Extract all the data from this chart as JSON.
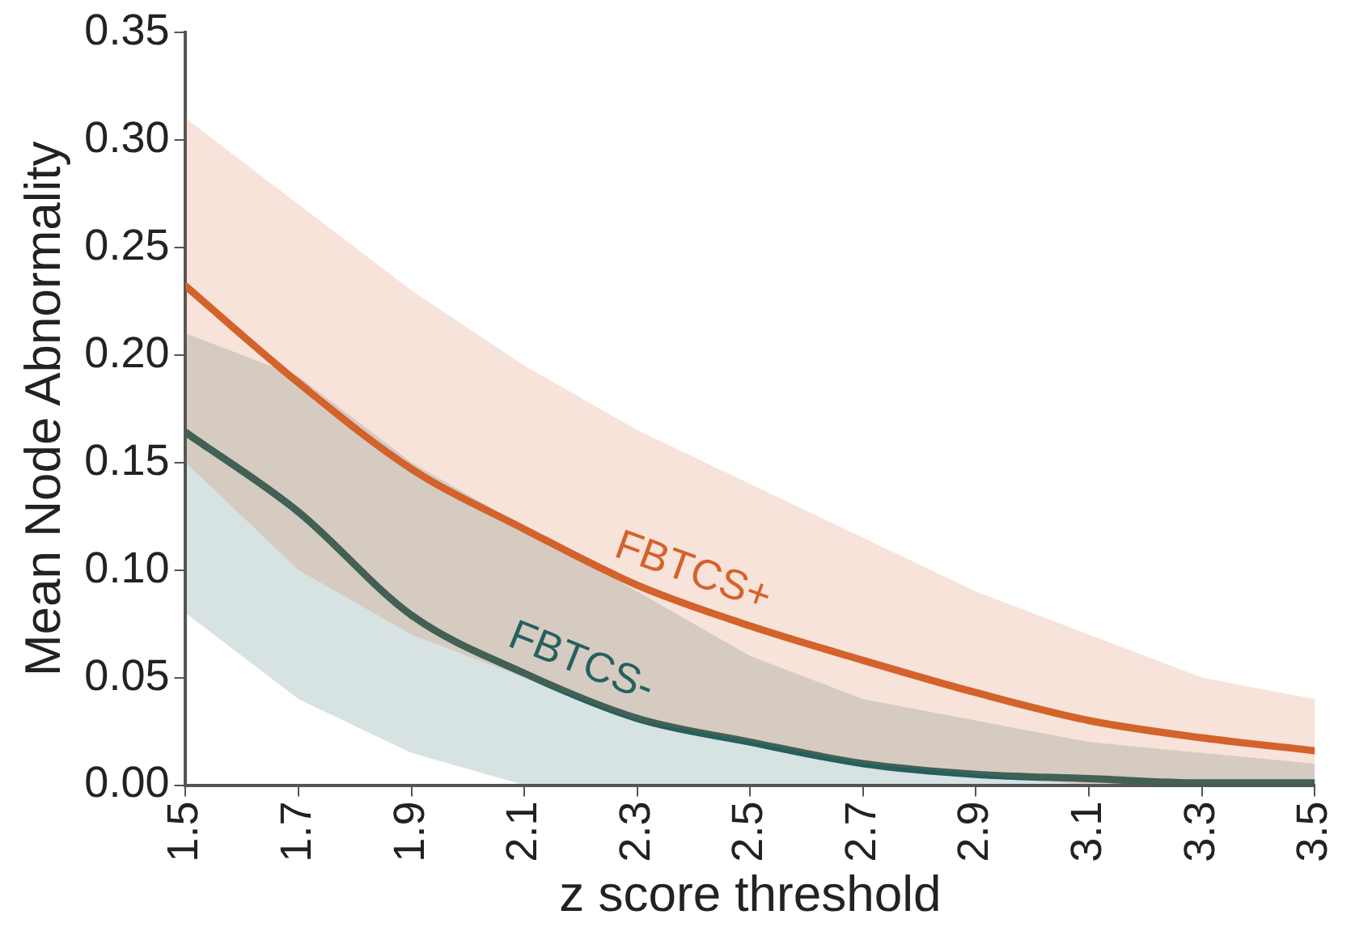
{
  "chart_data": {
    "type": "line",
    "xlabel": "z score threshold",
    "ylabel": "Mean Node Abnormality",
    "x": [
      1.5,
      1.7,
      1.9,
      2.1,
      2.3,
      2.5,
      2.7,
      2.9,
      3.1,
      3.3,
      3.5
    ],
    "series": [
      {
        "name": "FBTCS+",
        "color": "#d4622b",
        "values": [
          0.232,
          0.187,
          0.147,
          0.119,
          0.093,
          0.074,
          0.058,
          0.043,
          0.03,
          0.022,
          0.016
        ],
        "lower": [
          0.15,
          0.1,
          0.07,
          0.05,
          0.03,
          0.02,
          0.01,
          0.005,
          0,
          0,
          0
        ],
        "upper": [
          0.31,
          0.27,
          0.23,
          0.195,
          0.165,
          0.14,
          0.115,
          0.09,
          0.07,
          0.05,
          0.04
        ]
      },
      {
        "name": "FBTCS-",
        "color": "#24615f",
        "values": [
          0.164,
          0.127,
          0.079,
          0.052,
          0.031,
          0.02,
          0.01,
          0.005,
          0.003,
          0.001,
          0.001
        ],
        "lower": [
          0.08,
          0.04,
          0.015,
          0,
          0,
          0,
          0,
          0,
          0,
          0,
          0
        ],
        "upper": [
          0.21,
          0.19,
          0.15,
          0.12,
          0.09,
          0.06,
          0.04,
          0.03,
          0.02,
          0.015,
          0.01
        ]
      }
    ],
    "xlim": [
      1.5,
      3.5
    ],
    "xticks": [
      1.5,
      1.7,
      1.9,
      2.1,
      2.3,
      2.5,
      2.7,
      2.9,
      3.1,
      3.3,
      3.5
    ],
    "ylim": [
      0,
      0.35
    ],
    "yticks": [
      {
        "value": 0,
        "label": "0.00"
      },
      {
        "value": 0.05,
        "label": "0.05"
      },
      {
        "value": 0.1,
        "label": "0.10"
      },
      {
        "value": 0.15,
        "label": "0.15"
      },
      {
        "value": 0.2,
        "label": "0.20"
      },
      {
        "value": 0.25,
        "label": "0.25"
      },
      {
        "value": 0.3,
        "label": "0.30"
      },
      {
        "value": 0.35,
        "label": "0.35"
      }
    ],
    "grid": false,
    "legend": false,
    "marker": "none",
    "line_style": "solid"
  }
}
